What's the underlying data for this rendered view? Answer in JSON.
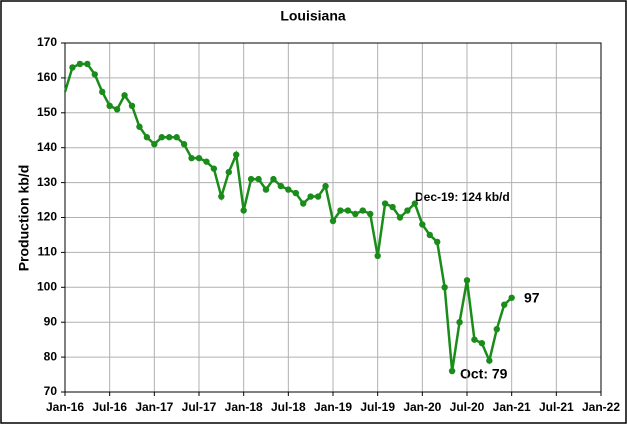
{
  "chart_data": {
    "type": "line",
    "title": "Louisiana",
    "y_label": "Production kb/d",
    "x": [
      "2016-01",
      "2016-02",
      "2016-03",
      "2016-04",
      "2016-05",
      "2016-06",
      "2016-07",
      "2016-08",
      "2016-09",
      "2016-10",
      "2016-11",
      "2016-12",
      "2017-01",
      "2017-02",
      "2017-03",
      "2017-04",
      "2017-05",
      "2017-06",
      "2017-07",
      "2017-08",
      "2017-09",
      "2017-10",
      "2017-11",
      "2017-12",
      "2018-01",
      "2018-02",
      "2018-03",
      "2018-04",
      "2018-05",
      "2018-06",
      "2018-07",
      "2018-08",
      "2018-09",
      "2018-10",
      "2018-11",
      "2018-12",
      "2019-01",
      "2019-02",
      "2019-03",
      "2019-04",
      "2019-05",
      "2019-06",
      "2019-07",
      "2019-08",
      "2019-09",
      "2019-10",
      "2019-11",
      "2019-12",
      "2020-01",
      "2020-02",
      "2020-03",
      "2020-04",
      "2020-05",
      "2020-06",
      "2020-07",
      "2020-08",
      "2020-09",
      "2020-10",
      "2020-11",
      "2020-12",
      "2021-01"
    ],
    "series": [
      {
        "color": "#1a8c1a",
        "values": [
          156,
          163,
          164,
          164,
          161,
          156,
          152,
          151,
          155,
          152,
          146,
          143,
          141,
          143,
          143,
          143,
          141,
          137,
          137,
          136,
          134,
          126,
          133,
          138,
          122,
          131,
          131,
          128,
          131,
          129,
          128,
          127,
          124,
          126,
          126,
          129,
          119,
          122,
          122,
          121,
          122,
          121,
          109,
          124,
          123,
          120,
          122,
          124,
          118,
          115,
          113,
          100,
          76,
          90,
          102,
          85,
          84,
          79,
          88,
          95,
          97
        ]
      }
    ],
    "xlim": [
      "2016-01",
      "2022-01"
    ],
    "xticks": [
      {
        "value": "2016-01",
        "label": "Jan-16"
      },
      {
        "value": "2016-07",
        "label": "Jul-16"
      },
      {
        "value": "2017-01",
        "label": "Jan-17"
      },
      {
        "value": "2017-07",
        "label": "Jul-17"
      },
      {
        "value": "2018-01",
        "label": "Jan-18"
      },
      {
        "value": "2018-07",
        "label": "Jul-18"
      },
      {
        "value": "2019-01",
        "label": "Jan-19"
      },
      {
        "value": "2019-07",
        "label": "Jul-19"
      },
      {
        "value": "2020-01",
        "label": "Jan-20"
      },
      {
        "value": "2020-07",
        "label": "Jul-20"
      },
      {
        "value": "2021-01",
        "label": "Jan-21"
      },
      {
        "value": "2021-07",
        "label": "Jul-21"
      },
      {
        "value": "2022-01",
        "label": "Jan-22"
      }
    ],
    "ylim": [
      70,
      170
    ],
    "yticks": [
      70,
      80,
      90,
      100,
      110,
      120,
      130,
      140,
      150,
      160,
      170
    ],
    "grid": true,
    "annotations": [
      "Dec-19: 124 kb/d",
      "Oct: 79",
      "97"
    ]
  }
}
